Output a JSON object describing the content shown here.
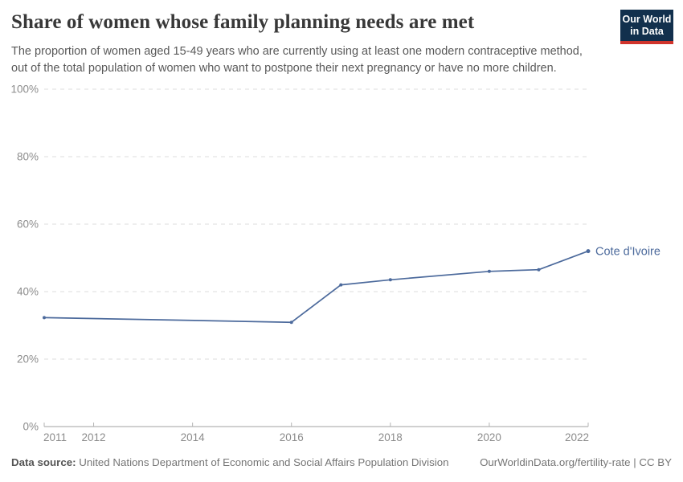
{
  "header": {
    "title": "Share of women whose family planning needs are met",
    "subtitle_lines": [
      "The proportion of women aged 15-49 years who are currently using at least one modern contraceptive method,",
      "out of the total population of women who want to postpone their next pregnancy or have no more children."
    ],
    "logo": {
      "line1": "Our World",
      "line2": "in Data",
      "bg_color": "#12304d",
      "accent_color": "#d0342c"
    }
  },
  "chart_data": {
    "type": "line",
    "title": "Share of women whose family planning needs are met",
    "xlabel": "",
    "ylabel": "",
    "xlim": [
      2011,
      2022
    ],
    "ylim": [
      0,
      100
    ],
    "grid": "horizontal dashed",
    "legend_position": "end-of-line label",
    "xticks": [
      {
        "value": 2011,
        "label": "2011"
      },
      {
        "value": 2012,
        "label": "2012"
      },
      {
        "value": 2014,
        "label": "2014"
      },
      {
        "value": 2016,
        "label": "2016"
      },
      {
        "value": 2018,
        "label": "2018"
      },
      {
        "value": 2020,
        "label": "2020"
      },
      {
        "value": 2022,
        "label": "2022"
      }
    ],
    "yticks": [
      {
        "value": 0,
        "label": "0%"
      },
      {
        "value": 20,
        "label": "20%"
      },
      {
        "value": 40,
        "label": "40%"
      },
      {
        "value": 60,
        "label": "60%"
      },
      {
        "value": 80,
        "label": "80%"
      },
      {
        "value": 100,
        "label": "100%"
      }
    ],
    "series": [
      {
        "name": "Cote d'Ivoire",
        "color": "#4C6A9C",
        "points": [
          {
            "x": 2011,
            "y": 32.3
          },
          {
            "x": 2016,
            "y": 30.9
          },
          {
            "x": 2017,
            "y": 42.0
          },
          {
            "x": 2018,
            "y": 43.5
          },
          {
            "x": 2020,
            "y": 46.0
          },
          {
            "x": 2021,
            "y": 46.5
          },
          {
            "x": 2022,
            "y": 52.0
          }
        ]
      }
    ]
  },
  "footer": {
    "source_label": "Data source:",
    "source_text": "United Nations Department of Economic and Social Affairs Population Division",
    "right_text": "OurWorldinData.org/fertility-rate | CC BY"
  }
}
